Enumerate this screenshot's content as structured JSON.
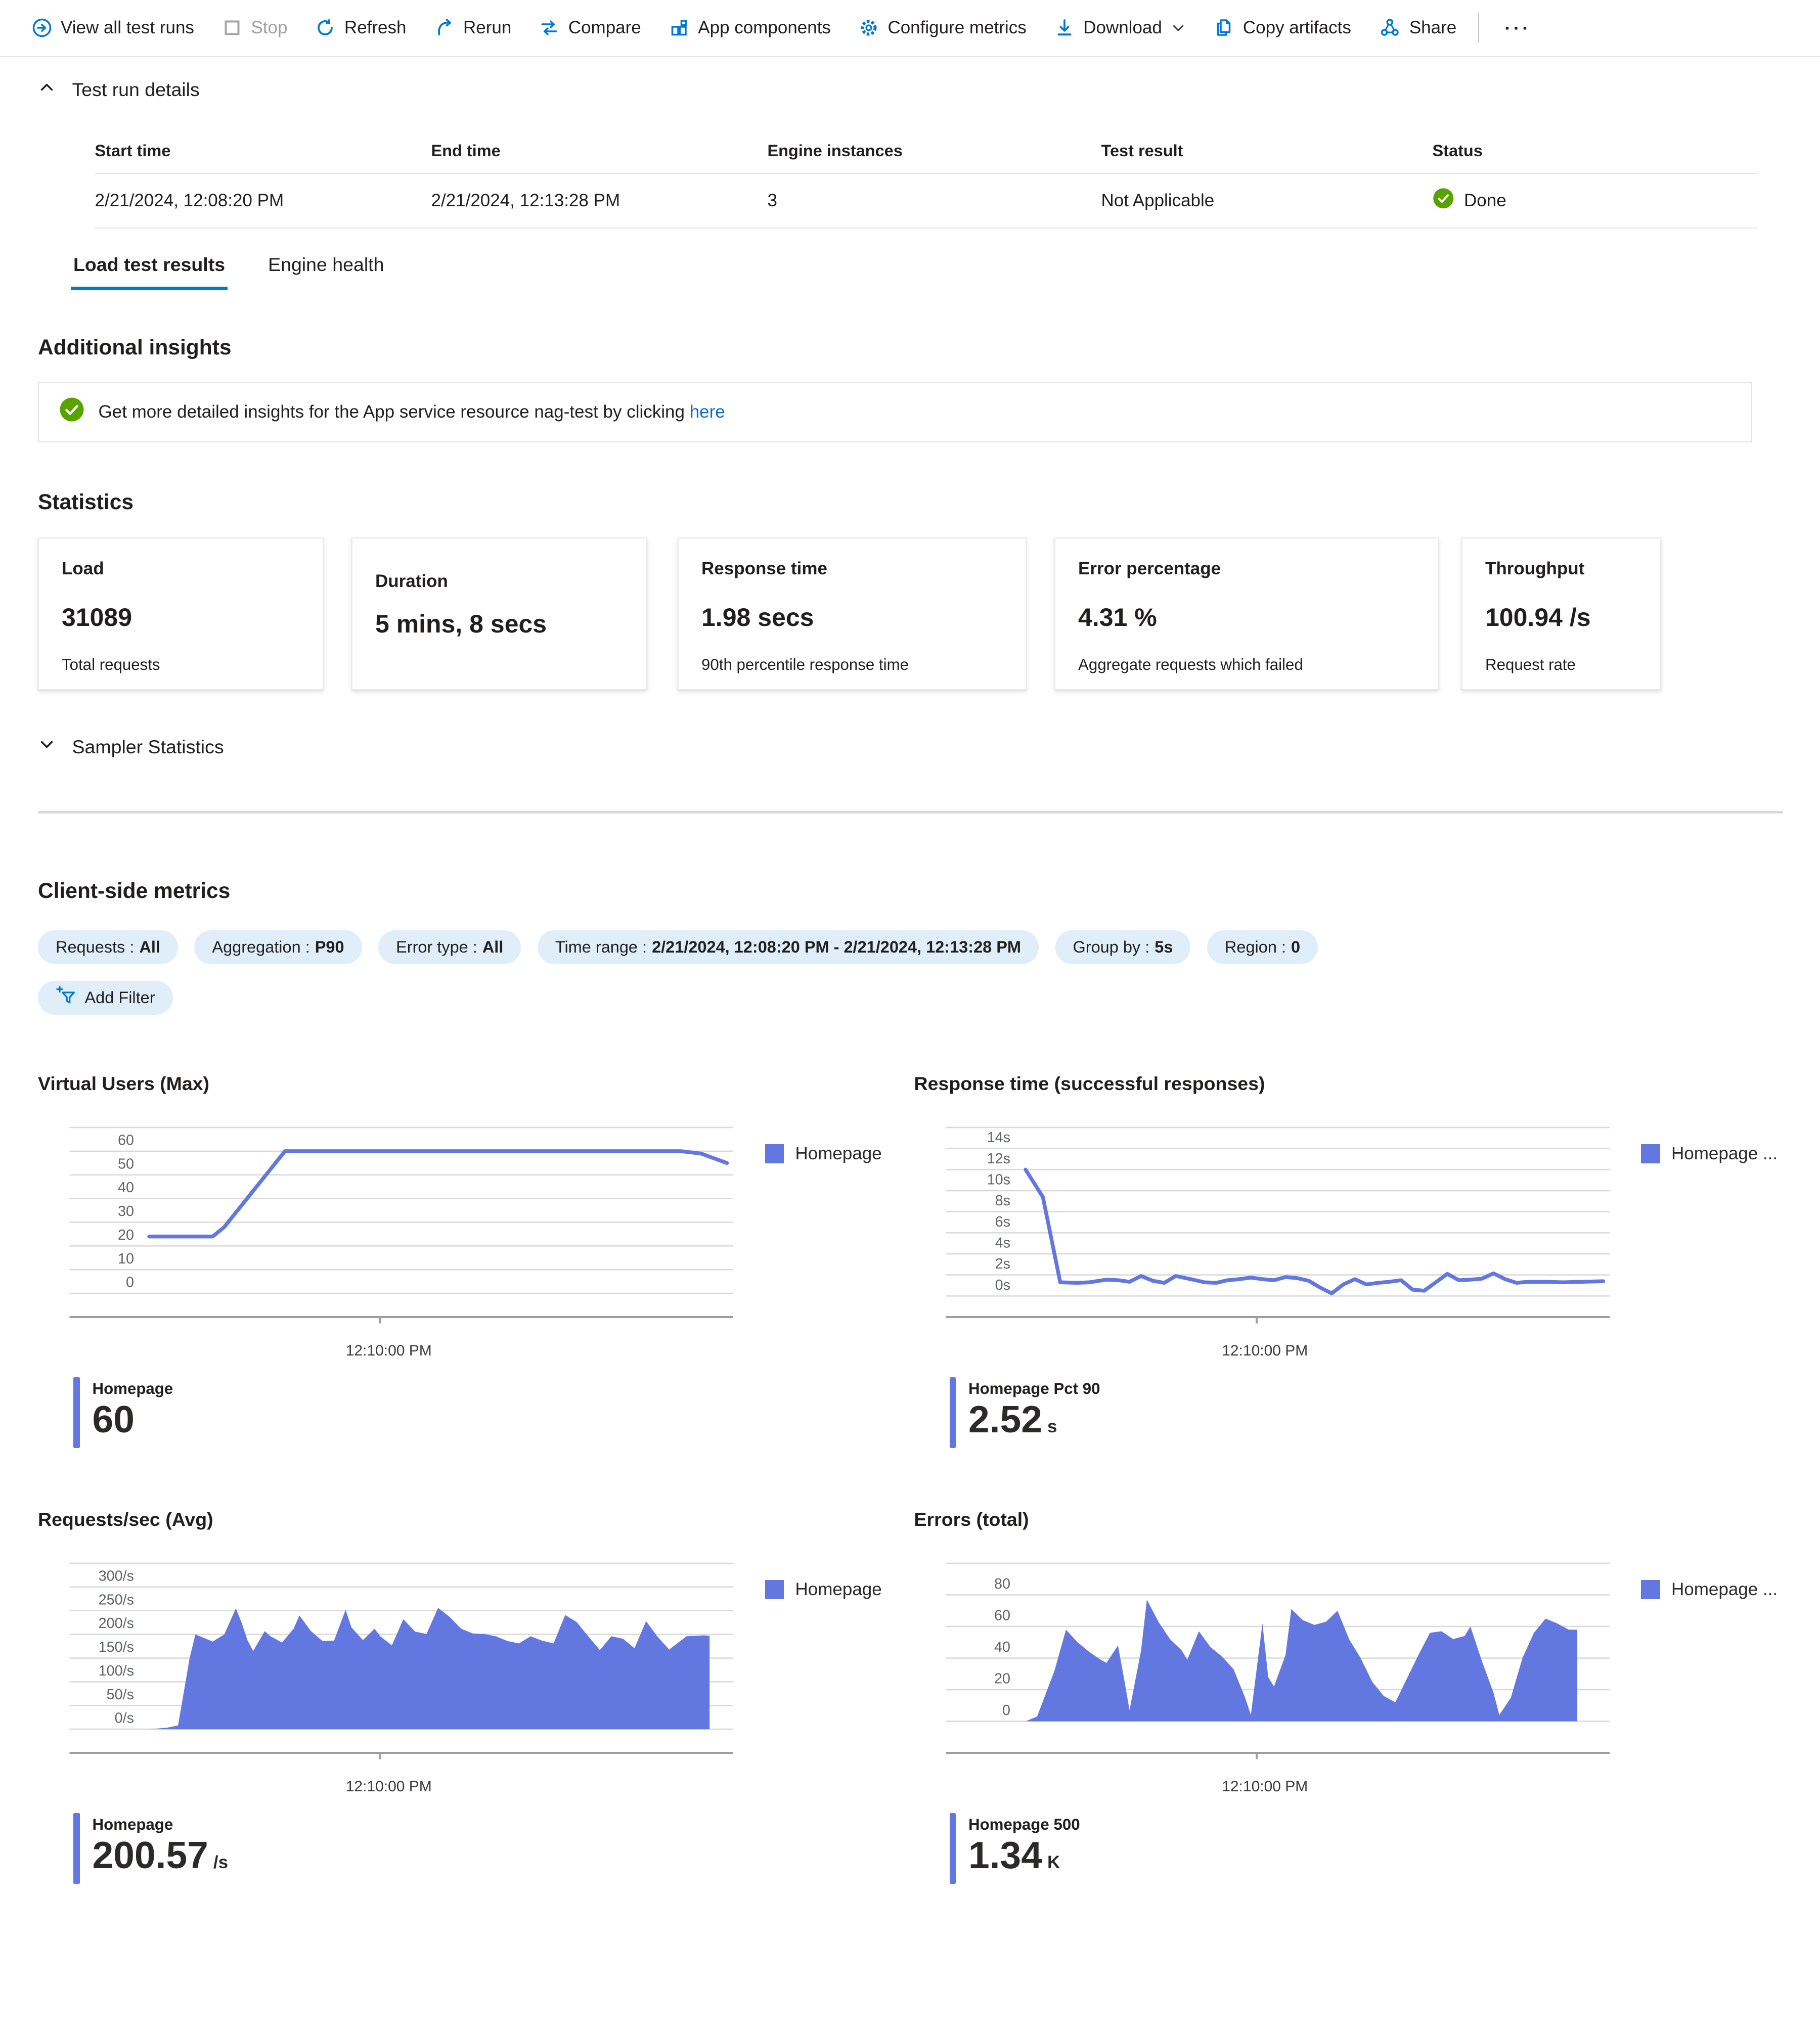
{
  "toolbar": {
    "items": [
      {
        "label": "View all test runs",
        "icon": "arrow-circle-right"
      },
      {
        "label": "Stop",
        "icon": "stop-square",
        "disabled": true
      },
      {
        "label": "Refresh",
        "icon": "refresh"
      },
      {
        "label": "Rerun",
        "icon": "rerun"
      },
      {
        "label": "Compare",
        "icon": "compare-arrows"
      },
      {
        "label": "App components",
        "icon": "app-components-grid"
      },
      {
        "label": "Configure metrics",
        "icon": "gear"
      },
      {
        "label": "Download",
        "icon": "download",
        "has_dropdown": true
      },
      {
        "label": "Copy artifacts",
        "icon": "copy"
      },
      {
        "label": "Share",
        "icon": "share"
      }
    ],
    "overflow_label": "···"
  },
  "test_run_details": {
    "title": "Test run details",
    "columns": [
      "Start time",
      "End time",
      "Engine instances",
      "Test result",
      "Status"
    ],
    "row": {
      "start_time": "2/21/2024, 12:08:20 PM",
      "end_time": "2/21/2024, 12:13:28 PM",
      "engine_instances": "3",
      "test_result": "Not Applicable",
      "status": "Done"
    }
  },
  "tabs": [
    {
      "label": "Load test results",
      "active": true
    },
    {
      "label": "Engine health",
      "active": false
    }
  ],
  "additional_insights": {
    "heading": "Additional insights",
    "message": "Get more detailed insights for the App service resource nag-test by clicking",
    "link_label": "here"
  },
  "statistics": {
    "heading": "Statistics",
    "cards": [
      {
        "title": "Load",
        "value": "31089",
        "caption": "Total requests"
      },
      {
        "title": "Duration",
        "value": "5 mins, 8 secs",
        "caption": ""
      },
      {
        "title": "Response time",
        "value": "1.98 secs",
        "caption": "90th percentile response time"
      },
      {
        "title": "Error percentage",
        "value": "4.31 %",
        "caption": "Aggregate requests which failed"
      },
      {
        "title": "Throughput",
        "value": "100.94 /s",
        "caption": "Request rate"
      }
    ],
    "sampler_label": "Sampler Statistics"
  },
  "client_side_metrics": {
    "heading": "Client-side metrics",
    "filters": [
      {
        "label": "Requests :",
        "value": "All"
      },
      {
        "label": "Aggregation :",
        "value": "P90"
      },
      {
        "label": "Error type :",
        "value": "All"
      },
      {
        "label": "Time range :",
        "value": "2/21/2024, 12:08:20 PM - 2/21/2024, 12:13:28 PM"
      },
      {
        "label": "Group by :",
        "value": "5s"
      },
      {
        "label": "Region :",
        "value": "0"
      }
    ],
    "add_filter_label": "Add Filter"
  },
  "colors": {
    "accent_blue": "#0078d4",
    "chart_blue": "#6377e0",
    "success_green": "#57a300",
    "pill_background": "#e0eefa"
  },
  "chart_data": [
    {
      "type": "line",
      "title": "Virtual Users (Max)",
      "legend": "Homepage",
      "color": "#6377e0",
      "y_ticks": [
        "60",
        "50",
        "40",
        "30",
        "20",
        "10",
        "0"
      ],
      "y_max": 60,
      "y_step": 10,
      "ylim": [
        0,
        60
      ],
      "x_axis_label": "12:10:00 PM",
      "grid": true,
      "legend_position": "right",
      "points": [
        [
          0,
          24
        ],
        [
          0.11,
          24
        ],
        [
          0.13,
          28
        ],
        [
          0.235,
          60
        ],
        [
          0.92,
          60
        ],
        [
          0.955,
          59
        ],
        [
          1,
          55
        ]
      ],
      "stat_label": "Homepage",
      "stat_value": "60",
      "stat_unit": ""
    },
    {
      "type": "line",
      "title": "Response time (successful responses)",
      "legend": "Homepage ...",
      "color": "#6377e0",
      "y_ticks": [
        "14s",
        "12s",
        "10s",
        "8s",
        "6s",
        "4s",
        "2s",
        "0s"
      ],
      "y_max": 14,
      "y_step": 2,
      "ylim": [
        0,
        14
      ],
      "x_axis_label": "12:10:00 PM",
      "grid": true,
      "legend_position": "right",
      "points": [
        [
          0,
          12
        ],
        [
          0.03,
          9.4
        ],
        [
          0.06,
          1.3
        ],
        [
          0.09,
          1.25
        ],
        [
          0.11,
          1.3
        ],
        [
          0.14,
          1.55
        ],
        [
          0.16,
          1.5
        ],
        [
          0.18,
          1.35
        ],
        [
          0.2,
          1.9
        ],
        [
          0.22,
          1.45
        ],
        [
          0.24,
          1.25
        ],
        [
          0.26,
          1.9
        ],
        [
          0.29,
          1.55
        ],
        [
          0.31,
          1.3
        ],
        [
          0.33,
          1.25
        ],
        [
          0.35,
          1.5
        ],
        [
          0.37,
          1.6
        ],
        [
          0.39,
          1.75
        ],
        [
          0.41,
          1.6
        ],
        [
          0.43,
          1.5
        ],
        [
          0.45,
          1.8
        ],
        [
          0.47,
          1.7
        ],
        [
          0.49,
          1.45
        ],
        [
          0.51,
          0.8
        ],
        [
          0.53,
          0.25
        ],
        [
          0.55,
          1.1
        ],
        [
          0.57,
          1.6
        ],
        [
          0.59,
          1.1
        ],
        [
          0.61,
          1.25
        ],
        [
          0.63,
          1.35
        ],
        [
          0.65,
          1.5
        ],
        [
          0.67,
          0.6
        ],
        [
          0.69,
          0.5
        ],
        [
          0.71,
          1.3
        ],
        [
          0.73,
          2.1
        ],
        [
          0.75,
          1.5
        ],
        [
          0.77,
          1.55
        ],
        [
          0.79,
          1.65
        ],
        [
          0.81,
          2.15
        ],
        [
          0.83,
          1.6
        ],
        [
          0.85,
          1.25
        ],
        [
          0.87,
          1.35
        ],
        [
          0.9,
          1.35
        ],
        [
          0.93,
          1.3
        ],
        [
          1,
          1.4
        ]
      ],
      "stat_label": "Homepage Pct 90",
      "stat_value": "2.52",
      "stat_unit": "s"
    },
    {
      "type": "area",
      "title": "Requests/sec (Avg)",
      "legend": "Homepage",
      "color": "#6377e0",
      "y_ticks": [
        "300/s",
        "250/s",
        "200/s",
        "150/s",
        "100/s",
        "50/s",
        "0/s"
      ],
      "y_max": 300,
      "y_step": 50,
      "ylim": [
        0,
        300
      ],
      "x_axis_label": "12:10:00 PM",
      "grid": true,
      "legend_position": "right",
      "points": [
        [
          0,
          0
        ],
        [
          0.03,
          3
        ],
        [
          0.05,
          8
        ],
        [
          0.07,
          150
        ],
        [
          0.08,
          200
        ],
        [
          0.09,
          195
        ],
        [
          0.11,
          185
        ],
        [
          0.13,
          200
        ],
        [
          0.15,
          255
        ],
        [
          0.16,
          225
        ],
        [
          0.17,
          188
        ],
        [
          0.18,
          165
        ],
        [
          0.2,
          207
        ],
        [
          0.21,
          196
        ],
        [
          0.23,
          183
        ],
        [
          0.25,
          212
        ],
        [
          0.26,
          240
        ],
        [
          0.28,
          207
        ],
        [
          0.3,
          186
        ],
        [
          0.32,
          187
        ],
        [
          0.34,
          252
        ],
        [
          0.35,
          215
        ],
        [
          0.37,
          188
        ],
        [
          0.39,
          212
        ],
        [
          0.4,
          196
        ],
        [
          0.42,
          177
        ],
        [
          0.44,
          232
        ],
        [
          0.46,
          206
        ],
        [
          0.48,
          201
        ],
        [
          0.5,
          256
        ],
        [
          0.52,
          237
        ],
        [
          0.54,
          212
        ],
        [
          0.56,
          202
        ],
        [
          0.58,
          201
        ],
        [
          0.6,
          196
        ],
        [
          0.62,
          186
        ],
        [
          0.64,
          181
        ],
        [
          0.66,
          196
        ],
        [
          0.68,
          187
        ],
        [
          0.7,
          181
        ],
        [
          0.72,
          241
        ],
        [
          0.74,
          226
        ],
        [
          0.76,
          196
        ],
        [
          0.78,
          167
        ],
        [
          0.8,
          196
        ],
        [
          0.82,
          191
        ],
        [
          0.84,
          171
        ],
        [
          0.86,
          228
        ],
        [
          0.88,
          195
        ],
        [
          0.9,
          168
        ],
        [
          0.93,
          196
        ],
        [
          0.96,
          198
        ],
        [
          0.97,
          197
        ]
      ],
      "stat_label": "Homepage",
      "stat_value": "200.57",
      "stat_unit": "/s"
    },
    {
      "type": "area",
      "title": "Errors (total)",
      "legend": "Homepage ...",
      "color": "#6377e0",
      "y_ticks": [
        "80",
        "60",
        "40",
        "20",
        "0"
      ],
      "y_max": 80,
      "y_step": 20,
      "ylim": [
        0,
        80
      ],
      "x_axis_label": "12:10:00 PM",
      "grid": true,
      "legend_position": "right",
      "points": [
        [
          0,
          0
        ],
        [
          0.02,
          3
        ],
        [
          0.05,
          32
        ],
        [
          0.07,
          58
        ],
        [
          0.09,
          50
        ],
        [
          0.11,
          44
        ],
        [
          0.13,
          39
        ],
        [
          0.14,
          37
        ],
        [
          0.16,
          48
        ],
        [
          0.17,
          28
        ],
        [
          0.18,
          7
        ],
        [
          0.2,
          45
        ],
        [
          0.21,
          77
        ],
        [
          0.23,
          63
        ],
        [
          0.25,
          52
        ],
        [
          0.27,
          45
        ],
        [
          0.28,
          39
        ],
        [
          0.3,
          57
        ],
        [
          0.32,
          47
        ],
        [
          0.34,
          41
        ],
        [
          0.36,
          33
        ],
        [
          0.38,
          15
        ],
        [
          0.39,
          4
        ],
        [
          0.41,
          62
        ],
        [
          0.42,
          28
        ],
        [
          0.43,
          22
        ],
        [
          0.45,
          42
        ],
        [
          0.46,
          71
        ],
        [
          0.48,
          64
        ],
        [
          0.5,
          61
        ],
        [
          0.52,
          63
        ],
        [
          0.54,
          70
        ],
        [
          0.56,
          52
        ],
        [
          0.58,
          40
        ],
        [
          0.6,
          25
        ],
        [
          0.62,
          16
        ],
        [
          0.64,
          12
        ],
        [
          0.66,
          27
        ],
        [
          0.68,
          42
        ],
        [
          0.7,
          56
        ],
        [
          0.72,
          57
        ],
        [
          0.74,
          52
        ],
        [
          0.76,
          54
        ],
        [
          0.77,
          60
        ],
        [
          0.79,
          38
        ],
        [
          0.81,
          18
        ],
        [
          0.82,
          4
        ],
        [
          0.84,
          15
        ],
        [
          0.86,
          40
        ],
        [
          0.88,
          56
        ],
        [
          0.9,
          65
        ],
        [
          0.92,
          62
        ],
        [
          0.94,
          58
        ],
        [
          0.955,
          58
        ]
      ],
      "stat_label": "Homepage 500",
      "stat_value": "1.34",
      "stat_unit": "K"
    }
  ]
}
